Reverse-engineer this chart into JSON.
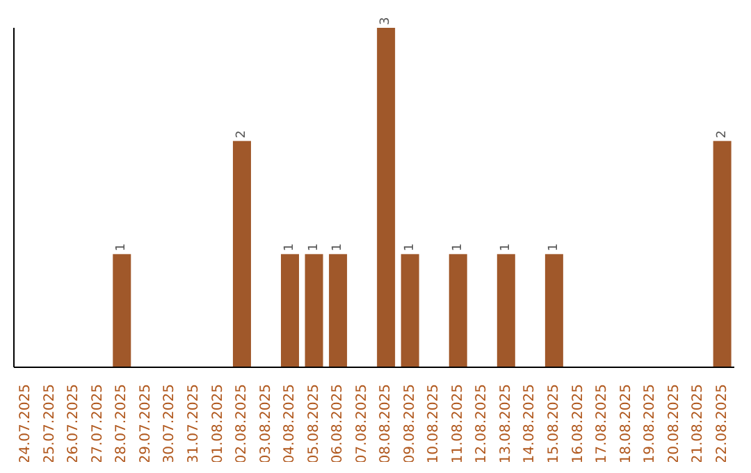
{
  "chart_data": {
    "type": "bar",
    "categories": [
      "24.07.2025",
      "25.07.2025",
      "26.07.2025",
      "27.07.2025",
      "28.07.2025",
      "29.07.2025",
      "30.07.2025",
      "31.07.2025",
      "01.08.2025",
      "02.08.2025",
      "03.08.2025",
      "04.08.2025",
      "05.08.2025",
      "06.08.2025",
      "07.08.2025",
      "08.08.2025",
      "09.08.2025",
      "10.08.2025",
      "11.08.2025",
      "12.08.2025",
      "13.08.2025",
      "14.08.2025",
      "15.08.2025",
      "16.08.2025",
      "17.08.2025",
      "18.08.2025",
      "19.08.2025",
      "20.08.2025",
      "21.08.2025",
      "22.08.2025"
    ],
    "values": [
      0,
      0,
      0,
      0,
      1,
      0,
      0,
      0,
      0,
      2,
      0,
      1,
      1,
      1,
      0,
      3,
      1,
      0,
      1,
      0,
      1,
      0,
      1,
      0,
      0,
      0,
      0,
      0,
      0,
      2
    ],
    "value_labels": [
      null,
      null,
      null,
      null,
      "1",
      null,
      null,
      null,
      null,
      "2",
      null,
      "1",
      "1",
      "1",
      null,
      "3",
      "1",
      null,
      "1",
      null,
      "1",
      null,
      "1",
      null,
      null,
      null,
      null,
      null,
      null,
      "2"
    ],
    "color": "#a0582a"
  }
}
